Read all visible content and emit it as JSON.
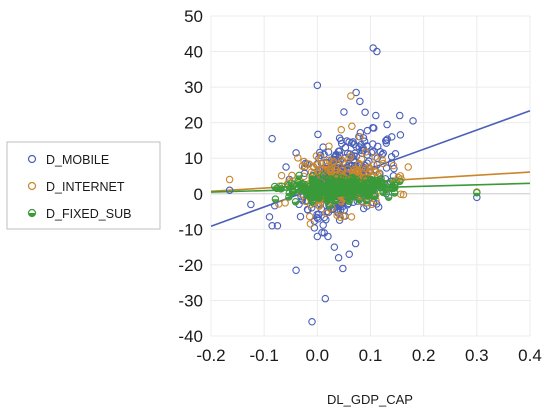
{
  "chart_data": {
    "type": "scatter",
    "title": "",
    "xlabel": "DL_GDP_CAP",
    "ylabel": "",
    "xlim": [
      -0.2,
      0.4
    ],
    "ylim": [
      -40,
      50
    ],
    "xticks": [
      "-0.2",
      "-0.1",
      "0.0",
      "0.1",
      "0.2",
      "0.3",
      "0.4"
    ],
    "yticks": [
      "50",
      "40",
      "30",
      "20",
      "10",
      "0",
      "-10",
      "-20",
      "-30",
      "-40"
    ],
    "grid": true,
    "legend_position": "left",
    "series": [
      {
        "name": "D_MOBILE",
        "color": "#4A5FB8",
        "marker": "circle",
        "fill": "none",
        "trend_line": {
          "slope": 54.1,
          "intercept": 1.7
        },
        "outliers": [
          [
            0.105,
            41
          ],
          [
            0.112,
            40
          ],
          [
            0.0,
            30.5
          ],
          [
            0.073,
            28.5
          ],
          [
            0.08,
            26
          ],
          [
            0.05,
            23
          ],
          [
            0.11,
            22
          ],
          [
            0.155,
            22
          ],
          [
            0.18,
            20.5
          ],
          [
            -0.085,
            15.5
          ],
          [
            -0.04,
            11.5
          ],
          [
            0.04,
            -18
          ],
          [
            0.06,
            -17
          ],
          [
            0.048,
            -21
          ],
          [
            -0.04,
            -21.5
          ],
          [
            0.015,
            -29.5
          ],
          [
            -0.01,
            -36
          ],
          [
            0.3,
            -1
          ],
          [
            -0.165,
            1
          ],
          [
            -0.125,
            -3
          ],
          [
            -0.09,
            -6.5
          ],
          [
            -0.075,
            -9
          ],
          [
            -0.085,
            -9
          ],
          [
            0.0,
            -12
          ],
          [
            0.013,
            -11
          ],
          [
            0.02,
            -12
          ],
          [
            0.032,
            -15
          ],
          [
            0.072,
            -14
          ],
          [
            0.13,
            15
          ],
          [
            0.14,
            16
          ]
        ]
      },
      {
        "name": "D_INTERNET",
        "color": "#C9862B",
        "marker": "circle",
        "fill": "none",
        "trend_line": {
          "slope": 9.0,
          "intercept": 2.5
        },
        "outliers": [
          [
            0.063,
            27.5
          ],
          [
            0.065,
            19
          ],
          [
            0.045,
            18
          ],
          [
            0.08,
            16
          ],
          [
            -0.165,
            4
          ],
          [
            0.3,
            0.5
          ]
        ]
      },
      {
        "name": "D_FIXED_SUB",
        "color": "#3A9A3A",
        "marker": "circle",
        "fill": "half",
        "trend_line": {
          "slope": 4.1,
          "intercept": 1.3
        },
        "outliers": [
          [
            0.3,
            0.3
          ],
          [
            0.155,
            3.5
          ],
          [
            0.14,
            1.5
          ]
        ]
      }
    ]
  }
}
